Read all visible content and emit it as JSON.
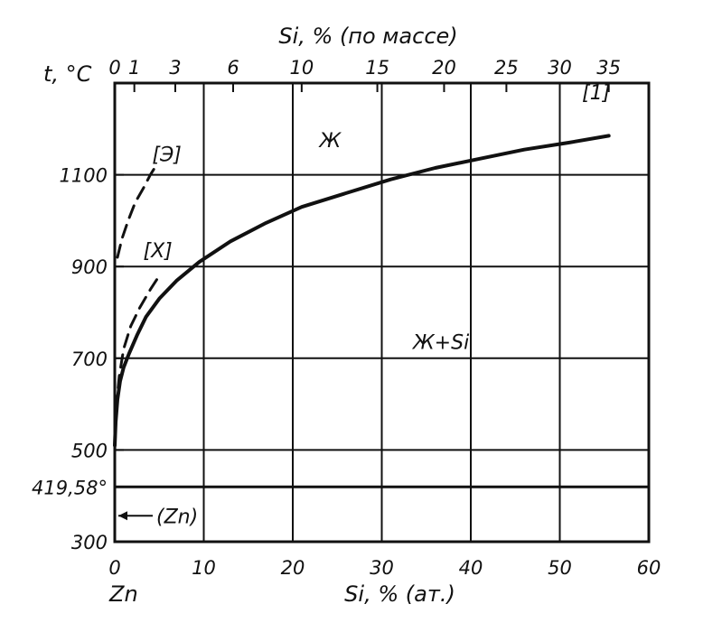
{
  "chart_data": {
    "type": "line",
    "title": "",
    "x_top_label": "Si, % (по массе)",
    "x_bottom_label": "Si, % (ат.)",
    "y_label": "t, °C",
    "x_left_element": "Zn",
    "xlim": [
      0,
      60
    ],
    "ylim": [
      300,
      1300
    ],
    "x_ticks": [
      0,
      10,
      20,
      30,
      40,
      50,
      60
    ],
    "x_tick_labels": [
      "0",
      "10",
      "20",
      "30",
      "40",
      "50",
      "60"
    ],
    "y_ticks": [
      300,
      419.58,
      500,
      700,
      900,
      1100
    ],
    "y_tick_labels": [
      "300",
      "419,58°",
      "500",
      "700",
      "900",
      "1100"
    ],
    "top_ticks": [
      {
        "label": "0",
        "at": 0
      },
      {
        "label": "1",
        "at": 2.2
      },
      {
        "label": "3",
        "at": 6.8
      },
      {
        "label": "6",
        "at": 13.3
      },
      {
        "label": "10",
        "at": 21.0
      },
      {
        "label": "15",
        "at": 29.5
      },
      {
        "label": "20",
        "at": 37.0
      },
      {
        "label": "25",
        "at": 44.0
      },
      {
        "label": "30",
        "at": 50.0
      },
      {
        "label": "35",
        "at": 55.5
      }
    ],
    "grid": true,
    "eutectic_line": {
      "y": 419.58,
      "label": "(Zn)"
    },
    "series": [
      {
        "name": "[1]",
        "style": "solid",
        "x": [
          0,
          0.1,
          0.3,
          0.6,
          1.0,
          1.6,
          2.5,
          3.5,
          5,
          7,
          9.5,
          13,
          17,
          21,
          26,
          31,
          36,
          41,
          46,
          51,
          55.5
        ],
        "y": [
          510,
          560,
          610,
          650,
          680,
          710,
          750,
          790,
          830,
          870,
          910,
          955,
          995,
          1030,
          1060,
          1090,
          1115,
          1135,
          1155,
          1170,
          1185
        ]
      },
      {
        "name": "[X]",
        "style": "dashed",
        "x": [
          0,
          0.2,
          0.5,
          1.0,
          1.8,
          2.8,
          4.0,
          5.0
        ],
        "y": [
          500,
          600,
          660,
          720,
          770,
          810,
          850,
          880
        ]
      },
      {
        "name": "[Э]",
        "style": "dashed",
        "x": [
          0.3,
          0.8,
          1.5,
          2.3,
          3.2,
          4.0,
          4.8
        ],
        "y": [
          920,
          960,
          1000,
          1040,
          1070,
          1100,
          1125
        ]
      }
    ],
    "annotations": [
      {
        "text": "Ж",
        "x": 23,
        "y": 1160
      },
      {
        "text": "Ж+Si",
        "x": 33.5,
        "y": 720
      },
      {
        "text": "[1]",
        "x": 52.5,
        "y": 1265
      },
      {
        "text": "[Э]",
        "x": 4.2,
        "y": 1130
      },
      {
        "text": "[X]",
        "x": 3.2,
        "y": 920
      }
    ]
  }
}
